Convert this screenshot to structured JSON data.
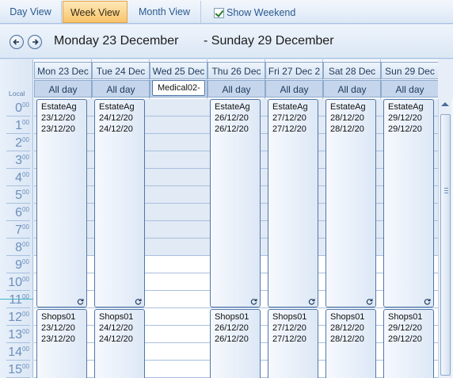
{
  "toolbar": {
    "day_view": "Day View",
    "week_view": "Week View",
    "month_view": "Month View",
    "show_weekend": "Show Weekend",
    "show_weekend_checked": true
  },
  "nav": {
    "start_date": "Monday 23 December",
    "end_date": "- Sunday 29 December"
  },
  "timebar": {
    "local_label": "Local",
    "hours": [
      {
        "h": "0",
        "m": "00"
      },
      {
        "h": "1",
        "m": "00"
      },
      {
        "h": "2",
        "m": "00"
      },
      {
        "h": "3",
        "m": "00"
      },
      {
        "h": "4",
        "m": "00"
      },
      {
        "h": "5",
        "m": "00"
      },
      {
        "h": "6",
        "m": "00"
      },
      {
        "h": "7",
        "m": "00"
      },
      {
        "h": "8",
        "m": "00"
      },
      {
        "h": "9",
        "m": "00"
      },
      {
        "h": "10",
        "m": "00"
      },
      {
        "h": "11",
        "m": "00"
      },
      {
        "h": "12",
        "m": "00"
      },
      {
        "h": "13",
        "m": "00"
      },
      {
        "h": "14",
        "m": "00"
      },
      {
        "h": "15",
        "m": "00"
      }
    ]
  },
  "days": [
    {
      "header": "Mon 23 Dec",
      "allday": "All day",
      "appt1": {
        "title": "EstateAg",
        "line1": "23/12/20",
        "line2": "23/12/20"
      },
      "appt2": {
        "title": "Shops01",
        "line1": "23/12/20",
        "line2": "23/12/20"
      }
    },
    {
      "header": "Tue 24 Dec",
      "allday": "All day",
      "appt1": {
        "title": "EstateAg",
        "line1": "24/12/20",
        "line2": "24/12/20"
      },
      "appt2": {
        "title": "Shops01",
        "line1": "24/12/20",
        "line2": "24/12/20"
      }
    },
    {
      "header": "Wed 25 Dec",
      "allday": "Medical02-"
    },
    {
      "header": "Thu 26 Dec",
      "allday": "All day",
      "appt1": {
        "title": "EstateAg",
        "line1": "26/12/20",
        "line2": "26/12/20"
      },
      "appt2": {
        "title": "Shops01",
        "line1": "26/12/20",
        "line2": "26/12/20"
      }
    },
    {
      "header": "Fri 27 Dec 2",
      "allday": "All day",
      "appt1": {
        "title": "EstateAg",
        "line1": "27/12/20",
        "line2": "27/12/20"
      },
      "appt2": {
        "title": "Shops01",
        "line1": "27/12/20",
        "line2": "27/12/20"
      }
    },
    {
      "header": "Sat 28 Dec",
      "allday": "All day",
      "appt1": {
        "title": "EstateAg",
        "line1": "28/12/20",
        "line2": "28/12/20"
      },
      "appt2": {
        "title": "Shops01",
        "line1": "28/12/20",
        "line2": "28/12/20"
      }
    },
    {
      "header": "Sun 29 Dec",
      "allday": "All day",
      "appt1": {
        "title": "EstateAg",
        "line1": "29/12/20",
        "line2": "29/12/20"
      },
      "appt2": {
        "title": "Shops01",
        "line1": "29/12/20",
        "line2": "29/12/20"
      }
    }
  ],
  "colors": {
    "active_tab": "#f9c46a",
    "appointment_border": "#5377a6",
    "working_hours": "#ffffff",
    "off_hours": "#e1eaf5"
  }
}
